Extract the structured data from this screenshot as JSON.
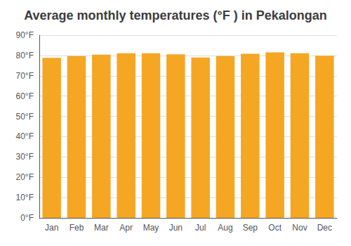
{
  "chart_data": {
    "type": "bar",
    "title": "Average monthly temperatures (°F ) in Pekalongan",
    "categories": [
      "Jan",
      "Feb",
      "Mar",
      "Apr",
      "May",
      "Jun",
      "Jul",
      "Aug",
      "Sep",
      "Oct",
      "Nov",
      "Dec"
    ],
    "values": [
      78.8,
      79.7,
      80.4,
      81.1,
      81.1,
      80.6,
      79.0,
      79.7,
      80.8,
      81.5,
      81.1,
      79.9
    ],
    "color": "#F5A623",
    "ylim": [
      0,
      90
    ],
    "yticks": [
      {
        "value": 0,
        "label": "0°F"
      },
      {
        "value": 10,
        "label": "10°F"
      },
      {
        "value": 20,
        "label": "20°F"
      },
      {
        "value": 30,
        "label": "30°F"
      },
      {
        "value": 40,
        "label": "40°F"
      },
      {
        "value": 50,
        "label": "50°F"
      },
      {
        "value": 60,
        "label": "60°F"
      },
      {
        "value": 70,
        "label": "70°F"
      },
      {
        "value": 80,
        "label": "80°F"
      },
      {
        "value": 90,
        "label": "90°F"
      }
    ],
    "grid": true
  }
}
